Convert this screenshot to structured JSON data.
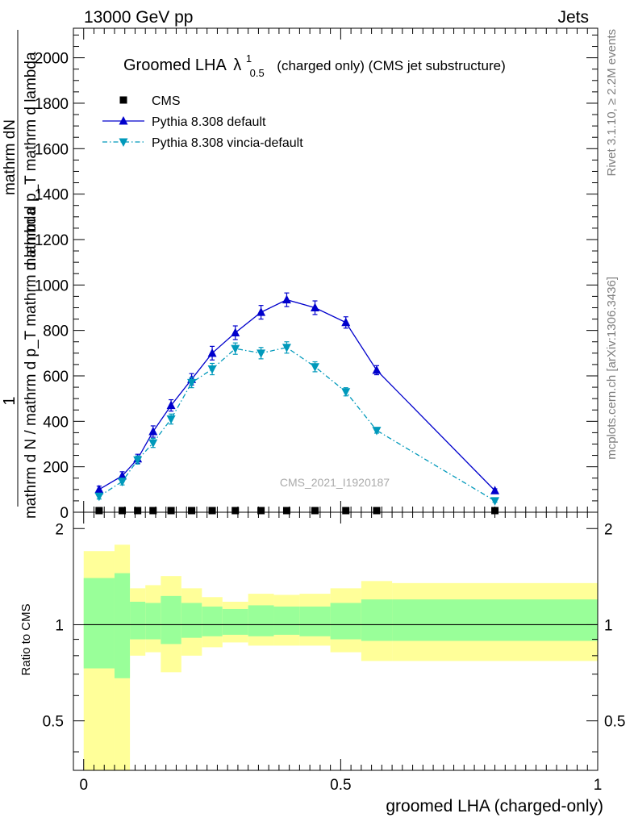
{
  "header": {
    "left": "13000 GeV pp",
    "right": "Jets"
  },
  "side": {
    "rivet": "Rivet 3.1.10, ≥ 2.2M events",
    "mcplots": "mcplots.cern.ch [arXiv:1306.3436]"
  },
  "chart_data": [
    {
      "type": "line",
      "title": "Groomed LHA",
      "title_symbol": "λ",
      "title_sup": "1",
      "title_sub": "0.5",
      "title_suffix": "(charged only) (CMS jet substructure)",
      "ylabel_num": "1",
      "ylabel_top": "mathrm dN",
      "ylabel_top2": "mathrm d p_T mathrm d lambda",
      "ylabel_den": "mathrm d N / mathrm d p_T mathrm d lambda",
      "watermark": "CMS_2021_I1920187",
      "xlim": [
        -0.02,
        1.0
      ],
      "ylim": [
        0,
        2130
      ],
      "yticks": [
        "0",
        "200",
        "400",
        "600",
        "800",
        "1000",
        "1200",
        "1400",
        "1600",
        "1800",
        "2000"
      ],
      "ytick_values": [
        0,
        200,
        400,
        600,
        800,
        1000,
        1200,
        1400,
        1600,
        1800,
        2000
      ],
      "legend_position": "top-left",
      "series": [
        {
          "name": "CMS",
          "color": "#000000",
          "marker": "square",
          "x": [
            0.03,
            0.075,
            0.105,
            0.135,
            0.17,
            0.21,
            0.25,
            0.295,
            0.345,
            0.395,
            0.45,
            0.51,
            0.57,
            0.8
          ],
          "y": [
            0,
            0,
            0,
            0,
            0,
            0,
            0,
            0,
            0,
            0,
            0,
            0,
            0,
            0
          ]
        },
        {
          "name": "Pythia 8.308 default",
          "color": "#0000cc",
          "marker": "triangle-up",
          "x": [
            0.03,
            0.075,
            0.105,
            0.135,
            0.17,
            0.21,
            0.25,
            0.295,
            0.345,
            0.395,
            0.45,
            0.51,
            0.57,
            0.8
          ],
          "y": [
            100,
            160,
            235,
            355,
            470,
            585,
            700,
            790,
            880,
            935,
            900,
            835,
            625,
            95
          ],
          "yerr": [
            15,
            18,
            20,
            25,
            25,
            25,
            30,
            30,
            30,
            30,
            30,
            25,
            20,
            8
          ]
        },
        {
          "name": "Pythia 8.308 vincia-default",
          "color": "#0099bb",
          "marker": "triangle-down",
          "x": [
            0.03,
            0.075,
            0.105,
            0.135,
            0.17,
            0.21,
            0.25,
            0.295,
            0.345,
            0.395,
            0.45,
            0.51,
            0.57,
            0.8
          ],
          "y": [
            70,
            135,
            230,
            305,
            410,
            570,
            630,
            720,
            700,
            725,
            640,
            530,
            360,
            50
          ],
          "yerr": [
            12,
            15,
            18,
            20,
            22,
            22,
            25,
            25,
            25,
            25,
            22,
            18,
            12,
            6
          ]
        }
      ]
    },
    {
      "type": "area",
      "ylabel": "Ratio to CMS",
      "xlabel": "groomed LHA (charged-only)",
      "xlim": [
        -0.02,
        1.0
      ],
      "ylim": [
        0.35,
        2.25
      ],
      "yticks": [
        "0.5",
        "1",
        "2"
      ],
      "ytick_values": [
        0.5,
        1,
        2
      ],
      "xticks": [
        "0",
        "0.5",
        "1"
      ],
      "xtick_values": [
        0,
        0.5,
        1
      ],
      "bands": {
        "edges": [
          0.0,
          0.06,
          0.09,
          0.12,
          0.15,
          0.19,
          0.23,
          0.27,
          0.32,
          0.37,
          0.42,
          0.48,
          0.54,
          0.6,
          1.0
        ],
        "yellow_lo": [
          0.2,
          0.2,
          0.8,
          0.82,
          0.71,
          0.8,
          0.85,
          0.88,
          0.86,
          0.86,
          0.86,
          0.82,
          0.77,
          0.77
        ],
        "yellow_hi": [
          1.7,
          1.78,
          1.3,
          1.33,
          1.42,
          1.3,
          1.22,
          1.18,
          1.25,
          1.24,
          1.25,
          1.3,
          1.37,
          1.35
        ],
        "green_lo": [
          0.73,
          0.68,
          0.9,
          0.9,
          0.87,
          0.91,
          0.92,
          0.93,
          0.92,
          0.93,
          0.92,
          0.9,
          0.89,
          0.89
        ],
        "green_hi": [
          1.4,
          1.45,
          1.18,
          1.17,
          1.23,
          1.17,
          1.14,
          1.12,
          1.15,
          1.14,
          1.14,
          1.17,
          1.2,
          1.2
        ]
      },
      "colors": {
        "yellow": "#ffff99",
        "green": "#99ff99"
      }
    }
  ]
}
